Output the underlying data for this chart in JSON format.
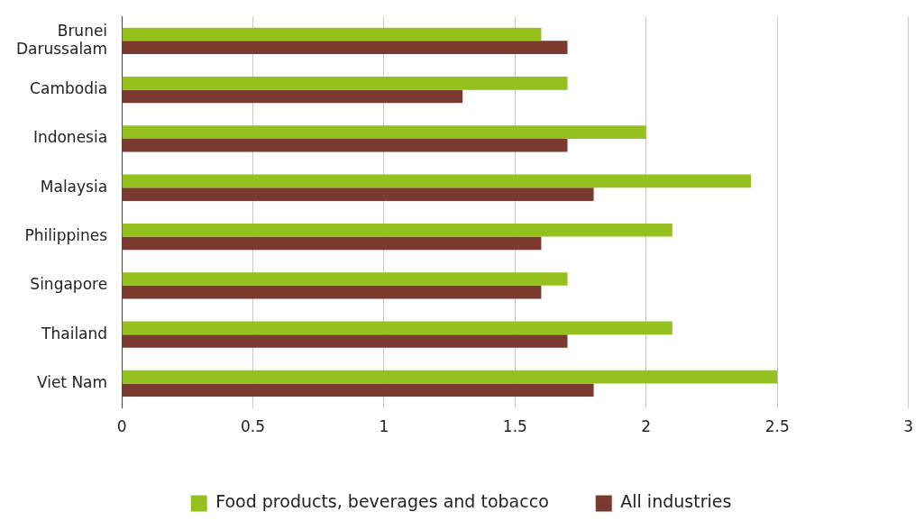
{
  "chart_data": {
    "type": "bar",
    "orientation": "horizontal",
    "categories": [
      "Brunei Darussalam",
      "Cambodia",
      "Indonesia",
      "Malaysia",
      "Philippines",
      "Singapore",
      "Thailand",
      "Viet Nam"
    ],
    "series": [
      {
        "name": "Food products, beverages and tobacco",
        "color": "#95c11f",
        "values": [
          1.6,
          1.7,
          2.0,
          2.4,
          2.1,
          1.7,
          2.1,
          2.5
        ]
      },
      {
        "name": "All industries",
        "color": "#7b3a30",
        "values": [
          1.7,
          1.3,
          1.7,
          1.8,
          1.6,
          1.6,
          1.7,
          1.8
        ]
      }
    ],
    "xlim": [
      0,
      3
    ],
    "xticks": [
      0,
      0.5,
      1,
      1.5,
      2,
      2.5,
      3
    ],
    "grid": "x",
    "legend": "bottom"
  }
}
